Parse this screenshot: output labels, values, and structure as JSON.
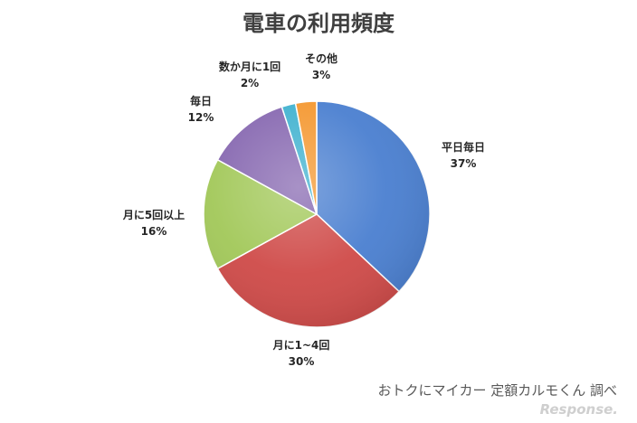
{
  "chart_data": {
    "type": "pie",
    "title": "電車の利用頻度",
    "slices": [
      {
        "label": "平日毎日",
        "value": 37,
        "value_label": "37%",
        "color": "#4a7fd0"
      },
      {
        "label": "月に1~4回",
        "value": 30,
        "value_label": "30%",
        "color": "#cf4a48"
      },
      {
        "label": "月に5回以上",
        "value": 16,
        "value_label": "16%",
        "color": "#a2c859"
      },
      {
        "label": "毎日",
        "value": 12,
        "value_label": "12%",
        "color": "#8667b0"
      },
      {
        "label": "数か月に1回",
        "value": 2,
        "value_label": "2%",
        "color": "#3fb1cf"
      },
      {
        "label": "その他",
        "value": 3,
        "value_label": "3%",
        "color": "#f4972f"
      }
    ],
    "start": "12 o'clock",
    "direction": "clockwise"
  },
  "source_note": "おトクにマイカー 定額カルモくん 調べ",
  "watermark": "Response."
}
